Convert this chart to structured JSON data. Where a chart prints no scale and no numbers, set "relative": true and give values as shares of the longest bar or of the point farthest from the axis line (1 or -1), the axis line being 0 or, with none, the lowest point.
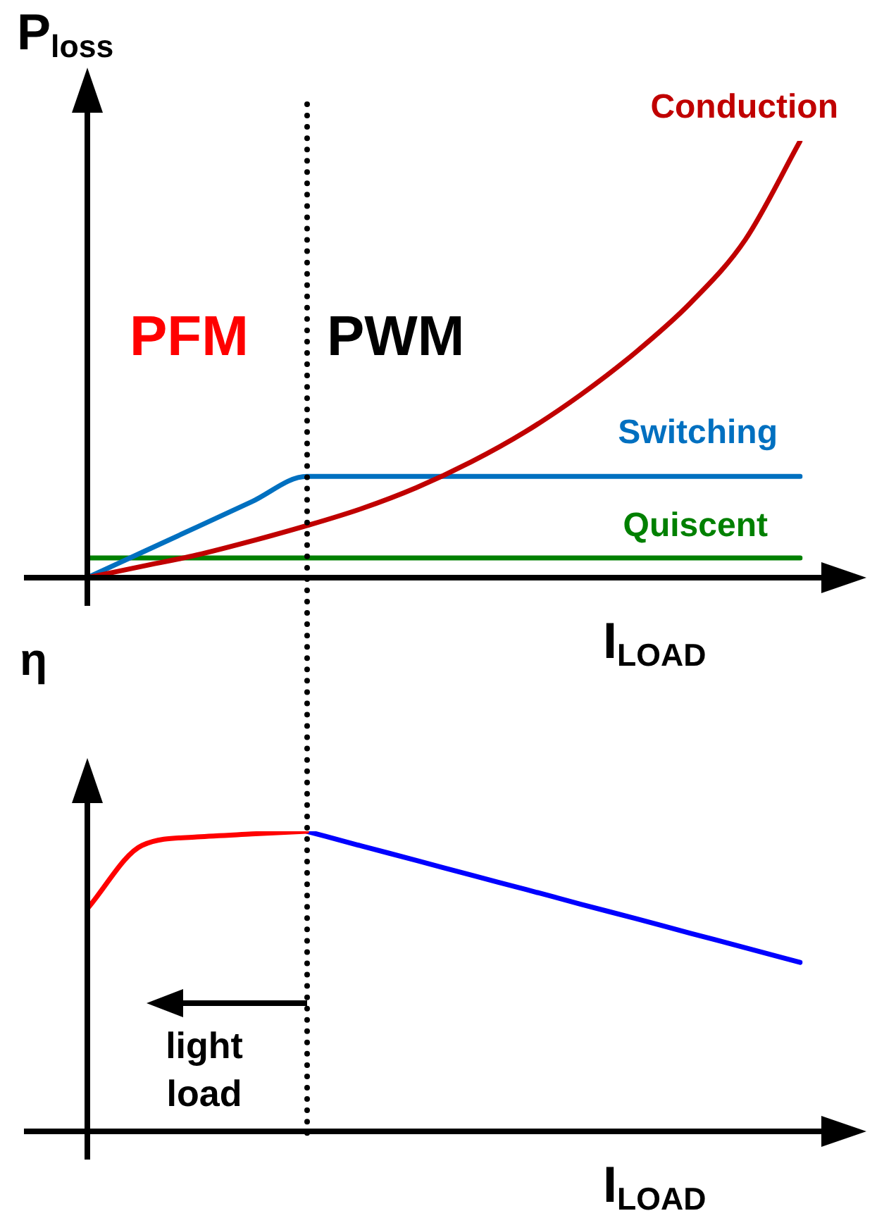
{
  "chart_data": [
    {
      "type": "line",
      "relative": true,
      "xlabel": "I$_{LOAD}$",
      "ylabel": "P$_{loss}$",
      "categories": [
        null,
        null,
        null,
        null,
        null,
        null,
        null,
        null,
        null,
        null,
        null,
        null,
        null,
        null
      ],
      "tick_labels": false,
      "legend": false,
      "annotations": [
        "PFM",
        "PWM"
      ],
      "series": [
        {
          "name": "Conduction",
          "color": "#c00000",
          "values": [
            0,
            0.026,
            0.052,
            0.084,
            0.119,
            0.158,
            0.206,
            0.265,
            0.335,
            0.419,
            0.516,
            0.629,
            0.774,
            1
          ]
        },
        {
          "name": "Switching",
          "color": "#0070c0",
          "values": [
            0,
            0.058,
            0.116,
            0.174,
            0.232,
            0.232,
            0.232,
            0.232,
            0.232,
            0.232,
            0.232,
            0.232,
            0.232,
            0.232
          ]
        },
        {
          "name": "Quiscent",
          "color": "#008000",
          "values": [
            0.045,
            0.045,
            0.045,
            0.045,
            0.045,
            0.045,
            0.045,
            0.045,
            0.045,
            0.045,
            0.045,
            0.045,
            0.045,
            0.045
          ]
        }
      ]
    },
    {
      "type": "line",
      "relative": true,
      "xlabel": "I$_{LOAD}$",
      "ylabel": "η",
      "categories": [
        null,
        null,
        null,
        null,
        null,
        null,
        null,
        null,
        null,
        null,
        null,
        null,
        null,
        null
      ],
      "tick_labels": false,
      "legend": false,
      "annotations": [
        "light load"
      ],
      "series": [
        {
          "color": "#ff0000",
          "values": [
            0.742,
            0.953,
            0.981,
            0.991,
            1,
            null,
            null,
            null,
            null,
            null,
            null,
            null,
            null,
            null
          ]
        },
        {
          "color": "#0000ff",
          "values": [
            null,
            null,
            null,
            null,
            1,
            0.951,
            0.903,
            0.854,
            0.806,
            0.757,
            0.709,
            0.66,
            0.612,
            0.563
          ]
        }
      ]
    }
  ]
}
